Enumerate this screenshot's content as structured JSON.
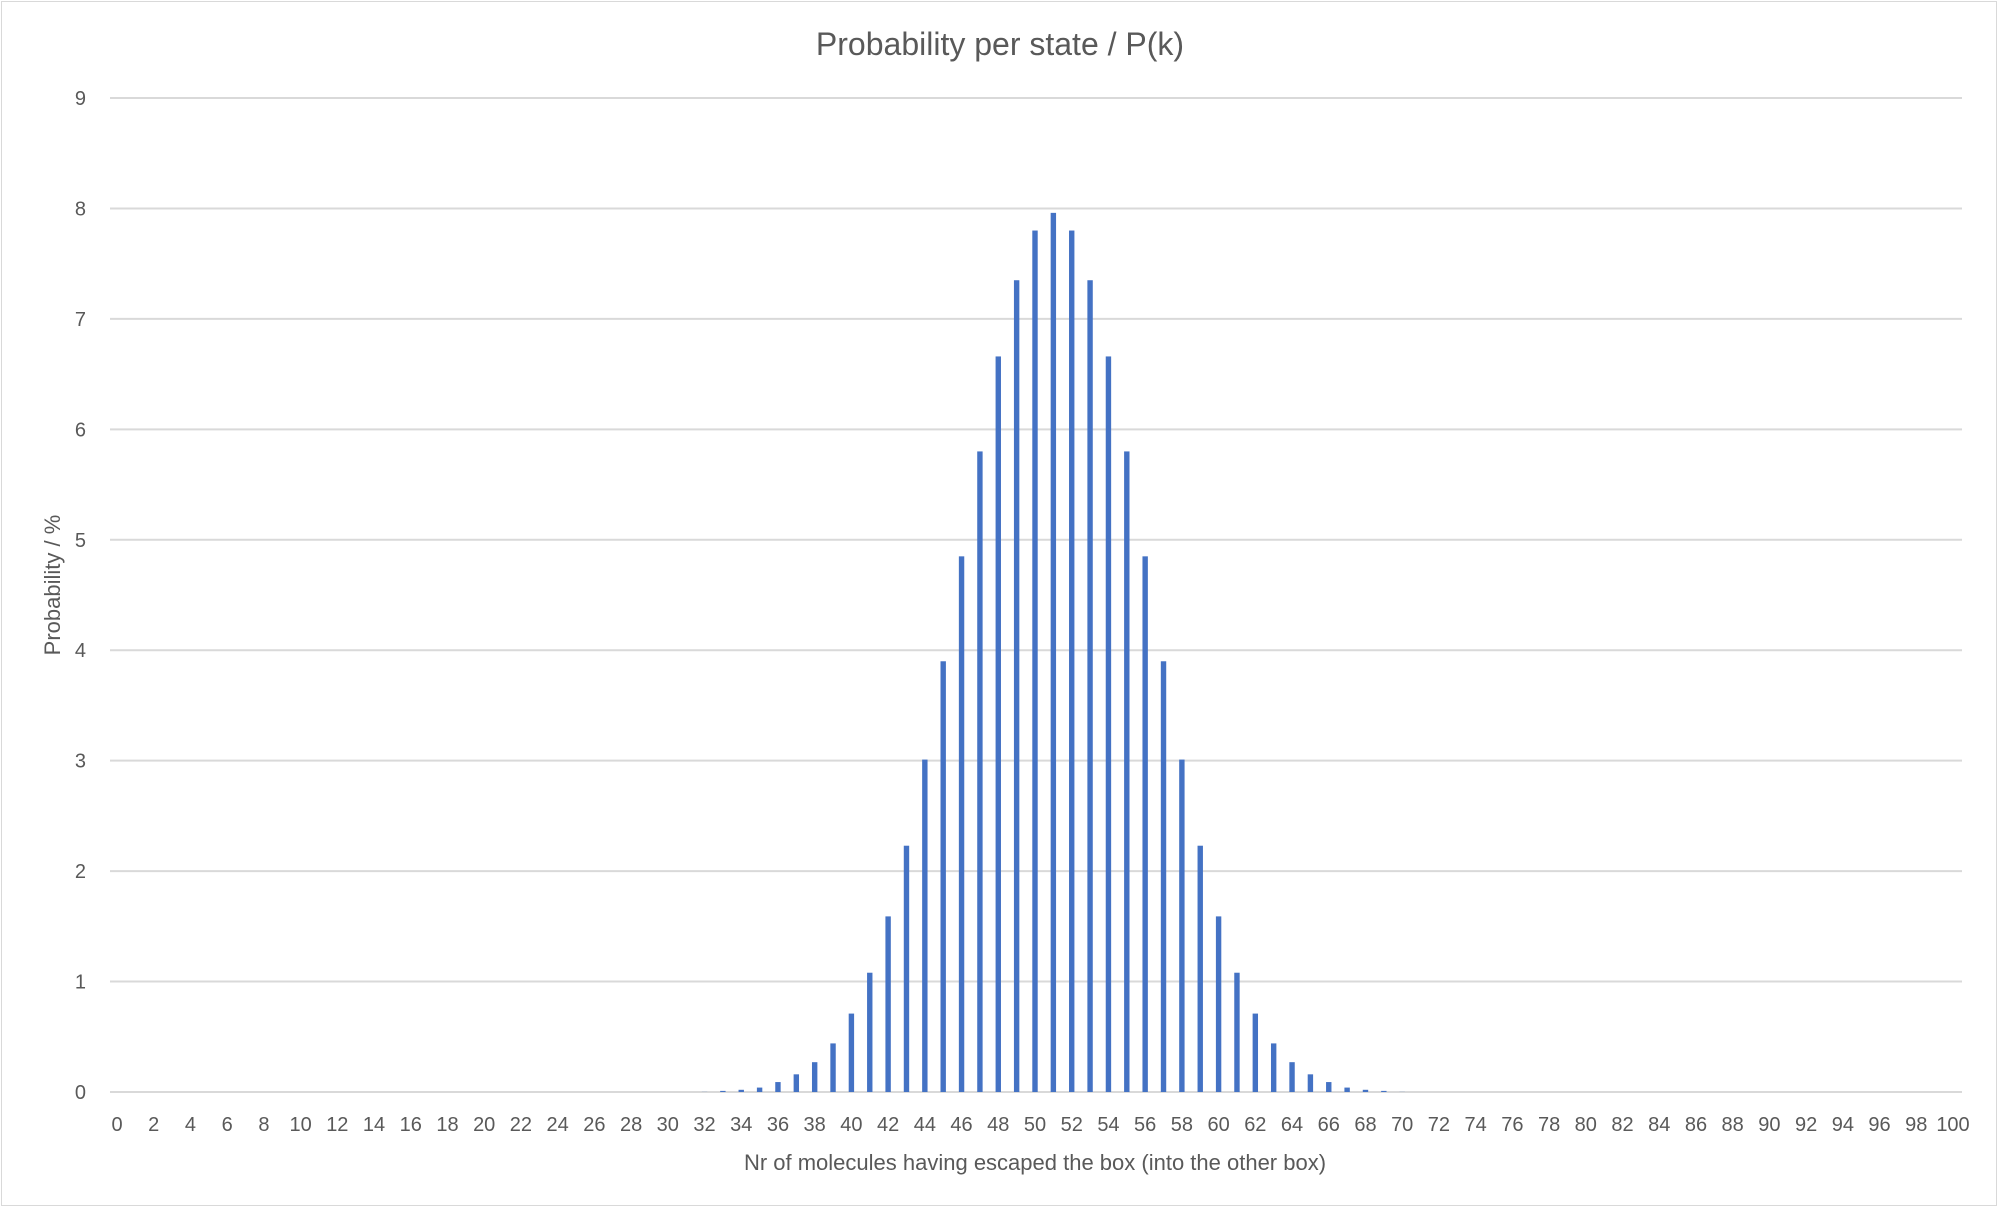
{
  "chart_data": {
    "type": "bar",
    "title": "Probability per state / P(k)",
    "xlabel": "Nr of molecules having escaped the box (into the other box)",
    "ylabel": "Probability  / %",
    "ylim": [
      0,
      9
    ],
    "yticks": [
      0,
      1,
      2,
      3,
      4,
      5,
      6,
      7,
      8,
      9
    ],
    "xrange": [
      0,
      100
    ],
    "xtick_labels": [
      "0",
      "2",
      "4",
      "6",
      "8",
      "10",
      "12",
      "14",
      "16",
      "18",
      "20",
      "22",
      "24",
      "26",
      "28",
      "30",
      "32",
      "34",
      "36",
      "38",
      "40",
      "42",
      "44",
      "46",
      "48",
      "50",
      "52",
      "54",
      "56",
      "58",
      "60",
      "62",
      "64",
      "66",
      "68",
      "70",
      "72",
      "74",
      "76",
      "78",
      "80",
      "82",
      "84",
      "86",
      "88",
      "90",
      "92",
      "94",
      "96",
      "98",
      "100"
    ],
    "grid": true,
    "legend": "none",
    "series": [
      {
        "color": "#4472c4",
        "x": [
          0,
          1,
          2,
          3,
          4,
          5,
          6,
          7,
          8,
          9,
          10,
          11,
          12,
          13,
          14,
          15,
          16,
          17,
          18,
          19,
          20,
          21,
          22,
          23,
          24,
          25,
          26,
          27,
          28,
          29,
          30,
          31,
          32,
          33,
          34,
          35,
          36,
          37,
          38,
          39,
          40,
          41,
          42,
          43,
          44,
          45,
          46,
          47,
          48,
          49,
          50,
          51,
          52,
          53,
          54,
          55,
          56,
          57,
          58,
          59,
          60,
          61,
          62,
          63,
          64,
          65,
          66,
          67,
          68,
          69,
          70,
          71,
          72,
          73,
          74,
          75,
          76,
          77,
          78,
          79,
          80,
          81,
          82,
          83,
          84,
          85,
          86,
          87,
          88,
          89,
          90,
          91,
          92,
          93,
          94,
          95,
          96,
          97,
          98,
          99,
          100
        ],
        "values": [
          0,
          0,
          0,
          0,
          0,
          0,
          0,
          0,
          0,
          0,
          0,
          0,
          0,
          0,
          0,
          0,
          0,
          0,
          0,
          0,
          0,
          0,
          0,
          0,
          0,
          0,
          0,
          0,
          0,
          0,
          0,
          0,
          0.001,
          0.01,
          0.02,
          0.04,
          0.09,
          0.16,
          0.27,
          0.44,
          0.71,
          1.08,
          1.59,
          2.23,
          3.01,
          3.9,
          4.85,
          5.8,
          6.66,
          7.35,
          7.8,
          7.96,
          7.8,
          7.35,
          6.66,
          5.8,
          4.85,
          3.9,
          3.01,
          2.23,
          1.59,
          1.08,
          0.71,
          0.44,
          0.27,
          0.16,
          0.09,
          0.04,
          0.02,
          0.01,
          0.001,
          0,
          0,
          0,
          0,
          0,
          0,
          0,
          0,
          0,
          0,
          0,
          0,
          0,
          0,
          0,
          0,
          0,
          0,
          0,
          0,
          0,
          0,
          0,
          0,
          0,
          0,
          0,
          0,
          0,
          0
        ]
      }
    ]
  }
}
